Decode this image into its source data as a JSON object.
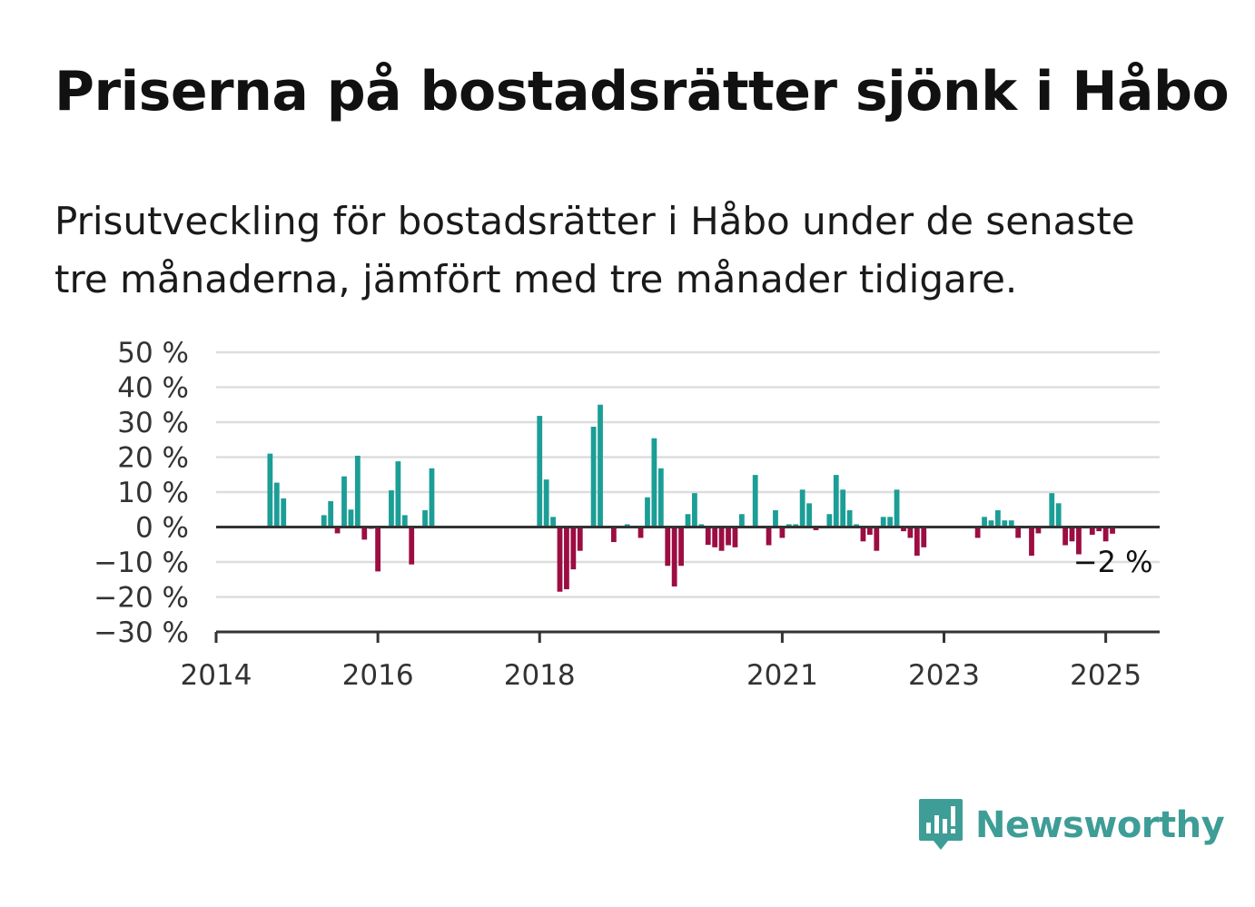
{
  "title": "Priserna på bostadsrätter sjönk i Håbo",
  "subtitle": "Prisutveckling för bostadsrätter i Håbo under de senaste tre månaderna, jämfört med tre månader tidigare.",
  "brand": {
    "name": "Newsworthy",
    "icon": "newsworthy-logo-icon",
    "color": "#3e9d96"
  },
  "colors": {
    "positive": "#1b9e96",
    "negative": "#9c0d42",
    "grid": "#dddddd",
    "axis": "#333333"
  },
  "chart_data": {
    "type": "bar",
    "ylim": [
      -30,
      50
    ],
    "xlim": [
      "2014-01",
      "2025-09"
    ],
    "y_ticks": [
      {
        "value": 50,
        "label": "50 %"
      },
      {
        "value": 40,
        "label": "40 %"
      },
      {
        "value": 30,
        "label": "30 %"
      },
      {
        "value": 20,
        "label": "20 %"
      },
      {
        "value": 10,
        "label": "10 %"
      },
      {
        "value": 0,
        "label": "0 %"
      },
      {
        "value": -10,
        "label": "−10 %"
      },
      {
        "value": -20,
        "label": "−20 %"
      },
      {
        "value": -30,
        "label": "−30 %"
      }
    ],
    "x_ticks": [
      {
        "value": "2014-01",
        "label": "2014"
      },
      {
        "value": "2016-01",
        "label": "2016"
      },
      {
        "value": "2018-01",
        "label": "2018"
      },
      {
        "value": "2021-01",
        "label": "2021"
      },
      {
        "value": "2023-01",
        "label": "2023"
      },
      {
        "value": "2025-01",
        "label": "2025"
      }
    ],
    "grid": true,
    "annotation": {
      "x": "2025-01",
      "text": "−2 %"
    },
    "series": [
      {
        "points": [
          [
            "2014-09",
            21
          ],
          [
            "2014-10",
            12.7
          ],
          [
            "2014-11",
            8.2
          ],
          [
            "2015-05",
            3.4
          ],
          [
            "2015-06",
            7.4
          ],
          [
            "2015-07",
            -1.8
          ],
          [
            "2015-08",
            14.5
          ],
          [
            "2015-09",
            5
          ],
          [
            "2015-10",
            20.4
          ],
          [
            "2015-11",
            -3.6
          ],
          [
            "2015-12",
            -0.5
          ],
          [
            "2016-01",
            -12.7
          ],
          [
            "2016-03",
            10.5
          ],
          [
            "2016-04",
            18.8
          ],
          [
            "2016-05",
            3.4
          ],
          [
            "2016-06",
            -10.7
          ],
          [
            "2016-08",
            4.8
          ],
          [
            "2016-09",
            16.8
          ],
          [
            "2018-01",
            31.8
          ],
          [
            "2018-02",
            13.6
          ],
          [
            "2018-03",
            2.9
          ],
          [
            "2018-04",
            -18.5
          ],
          [
            "2018-05",
            -17.8
          ],
          [
            "2018-06",
            -12.1
          ],
          [
            "2018-07",
            -6.8
          ],
          [
            "2018-08",
            -0.2
          ],
          [
            "2018-09",
            28.7
          ],
          [
            "2018-10",
            35
          ],
          [
            "2018-12",
            -4.3
          ],
          [
            "2019-02",
            0.8
          ],
          [
            "2019-04",
            -3.1
          ],
          [
            "2019-05",
            8.5
          ],
          [
            "2019-06",
            25.4
          ],
          [
            "2019-07",
            16.8
          ],
          [
            "2019-08",
            -11.1
          ],
          [
            "2019-09",
            -17
          ],
          [
            "2019-10",
            -11.1
          ],
          [
            "2019-11",
            3.7
          ],
          [
            "2019-12",
            9.7
          ],
          [
            "2020-01",
            0.8
          ],
          [
            "2020-02",
            -5.1
          ],
          [
            "2020-03",
            -5.8
          ],
          [
            "2020-04",
            -6.8
          ],
          [
            "2020-05",
            -5.2
          ],
          [
            "2020-06",
            -5.8
          ],
          [
            "2020-07",
            3.7
          ],
          [
            "2020-09",
            14.9
          ],
          [
            "2020-11",
            -5.2
          ],
          [
            "2020-12",
            4.8
          ],
          [
            "2021-01",
            -3.1
          ],
          [
            "2021-02",
            0.8
          ],
          [
            "2021-03",
            0.8
          ],
          [
            "2021-04",
            10.7
          ],
          [
            "2021-05",
            6.8
          ],
          [
            "2021-06",
            -0.9
          ],
          [
            "2021-08",
            3.7
          ],
          [
            "2021-09",
            14.9
          ],
          [
            "2021-10",
            10.7
          ],
          [
            "2021-11",
            4.8
          ],
          [
            "2021-12",
            0.8
          ],
          [
            "2022-01",
            -4.1
          ],
          [
            "2022-02",
            -2.2
          ],
          [
            "2022-03",
            -6.8
          ],
          [
            "2022-04",
            2.9
          ],
          [
            "2022-05",
            2.9
          ],
          [
            "2022-06",
            10.7
          ],
          [
            "2022-07",
            -1.2
          ],
          [
            "2022-08",
            -3.1
          ],
          [
            "2022-09",
            -8.2
          ],
          [
            "2022-10",
            -5.8
          ],
          [
            "2023-06",
            -3.1
          ],
          [
            "2023-07",
            2.9
          ],
          [
            "2023-08",
            1.9
          ],
          [
            "2023-09",
            4.8
          ],
          [
            "2023-10",
            1.9
          ],
          [
            "2023-11",
            1.9
          ],
          [
            "2023-12",
            -3.1
          ],
          [
            "2024-02",
            -8.2
          ],
          [
            "2024-03",
            -1.8
          ],
          [
            "2024-05",
            9.7
          ],
          [
            "2024-06",
            6.8
          ],
          [
            "2024-07",
            -5.2
          ],
          [
            "2024-08",
            -4.1
          ],
          [
            "2024-09",
            -7.8
          ],
          [
            "2024-11",
            -2.2
          ],
          [
            "2024-12",
            -1.2
          ],
          [
            "2025-01",
            -4.1
          ],
          [
            "2025-02",
            -1.9
          ]
        ]
      }
    ]
  }
}
